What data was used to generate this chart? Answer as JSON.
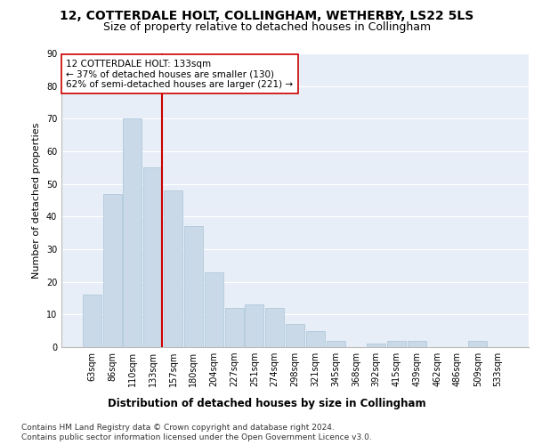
{
  "title1": "12, COTTERDALE HOLT, COLLINGHAM, WETHERBY, LS22 5LS",
  "title2": "Size of property relative to detached houses in Collingham",
  "xlabel": "Distribution of detached houses by size in Collingham",
  "ylabel": "Number of detached properties",
  "categories": [
    "63sqm",
    "86sqm",
    "110sqm",
    "133sqm",
    "157sqm",
    "180sqm",
    "204sqm",
    "227sqm",
    "251sqm",
    "274sqm",
    "298sqm",
    "321sqm",
    "345sqm",
    "368sqm",
    "392sqm",
    "415sqm",
    "439sqm",
    "462sqm",
    "486sqm",
    "509sqm",
    "533sqm"
  ],
  "values": [
    16,
    47,
    70,
    55,
    48,
    37,
    23,
    12,
    13,
    12,
    7,
    5,
    2,
    0,
    1,
    2,
    2,
    0,
    0,
    2,
    0
  ],
  "bar_color": "#c9d9e8",
  "bar_edge_color": "#a8c4d8",
  "vline_index": 3,
  "vline_color": "#cc0000",
  "annotation_text": "12 COTTERDALE HOLT: 133sqm\n← 37% of detached houses are smaller (130)\n62% of semi-detached houses are larger (221) →",
  "annotation_box_color": "#ffffff",
  "annotation_box_edge": "#cc0000",
  "ylim": [
    0,
    90
  ],
  "yticks": [
    0,
    10,
    20,
    30,
    40,
    50,
    60,
    70,
    80,
    90
  ],
  "footnote1": "Contains HM Land Registry data © Crown copyright and database right 2024.",
  "footnote2": "Contains public sector information licensed under the Open Government Licence v3.0.",
  "background_color": "#e8eef7",
  "grid_color": "#ffffff",
  "title1_fontsize": 10,
  "title2_fontsize": 9,
  "xlabel_fontsize": 8.5,
  "ylabel_fontsize": 8,
  "tick_fontsize": 7,
  "footnote_fontsize": 6.5,
  "annotation_fontsize": 7.5
}
